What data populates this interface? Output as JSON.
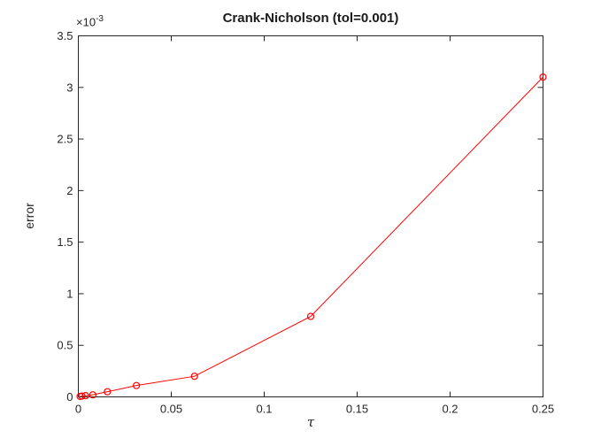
{
  "figure": {
    "title": "Crank-Nicholson (tol=0.001)",
    "xlabel": "τ",
    "ylabel": "error",
    "y_exponent_base": "×10",
    "y_exponent_power": "-3",
    "background": "#ffffff"
  },
  "chart_data": {
    "type": "line",
    "title": "Crank-Nicholson (tol=0.001)",
    "xlabel": "τ",
    "ylabel": "error",
    "xlim": [
      0,
      0.25
    ],
    "ylim": [
      0,
      0.0035
    ],
    "xticks": [
      0,
      0.05,
      0.1,
      0.15,
      0.2,
      0.25
    ],
    "xtick_labels": [
      "0",
      "0.05",
      "0.1",
      "0.15",
      "0.2",
      "0.25"
    ],
    "yticks": [
      0,
      0.0005,
      0.001,
      0.0015,
      0.002,
      0.0025,
      0.003,
      0.0035
    ],
    "ytick_labels": [
      "0",
      "0.5",
      "1",
      "1.5",
      "2",
      "2.5",
      "3",
      "3.5"
    ],
    "y_scale_exponent": -3,
    "grid": false,
    "legend": null,
    "axis_color": "#262626",
    "series": [
      {
        "name": "error",
        "color": "#ff0000",
        "marker": "circle",
        "line_style": "solid",
        "points": [
          {
            "x": 0.0009765625,
            "y": 5e-06
          },
          {
            "x": 0.001953125,
            "y": 8e-06
          },
          {
            "x": 0.00390625,
            "y": 1.2e-05
          },
          {
            "x": 0.0078125,
            "y": 2e-05
          },
          {
            "x": 0.015625,
            "y": 5e-05
          },
          {
            "x": 0.03125,
            "y": 0.00011
          },
          {
            "x": 0.0625,
            "y": 0.0002
          },
          {
            "x": 0.125,
            "y": 0.00078
          },
          {
            "x": 0.25,
            "y": 0.0031
          }
        ]
      }
    ]
  }
}
